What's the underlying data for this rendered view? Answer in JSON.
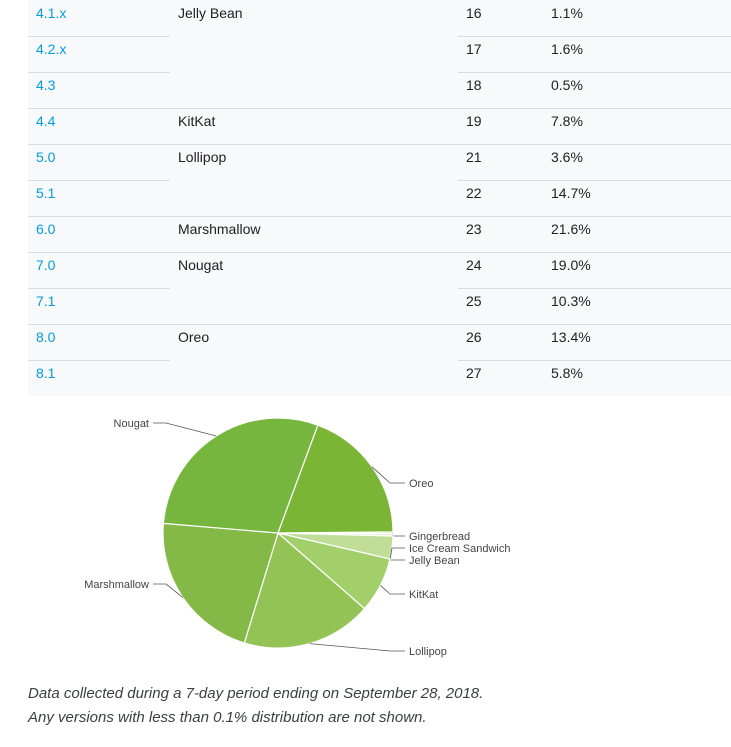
{
  "table": {
    "rows": [
      {
        "version": "4.1.x",
        "codename": "Jelly Bean",
        "api": "16",
        "distribution": "1.1%"
      },
      {
        "version": "4.2.x",
        "codename": "",
        "api": "17",
        "distribution": "1.6%"
      },
      {
        "version": "4.3",
        "codename": "",
        "api": "18",
        "distribution": "0.5%"
      },
      {
        "version": "4.4",
        "codename": "KitKat",
        "api": "19",
        "distribution": "7.8%"
      },
      {
        "version": "5.0",
        "codename": "Lollipop",
        "api": "21",
        "distribution": "3.6%"
      },
      {
        "version": "5.1",
        "codename": "",
        "api": "22",
        "distribution": "14.7%"
      },
      {
        "version": "6.0",
        "codename": "Marshmallow",
        "api": "23",
        "distribution": "21.6%"
      },
      {
        "version": "7.0",
        "codename": "Nougat",
        "api": "24",
        "distribution": "19.0%"
      },
      {
        "version": "7.1",
        "codename": "",
        "api": "25",
        "distribution": "10.3%"
      },
      {
        "version": "8.0",
        "codename": "Oreo",
        "api": "26",
        "distribution": "13.4%"
      },
      {
        "version": "8.1",
        "codename": "",
        "api": "27",
        "distribution": "5.8%"
      }
    ]
  },
  "chart_data": {
    "type": "pie",
    "slices": [
      {
        "label": "Gingerbread",
        "value": 0.3,
        "color": "#e6f0d2"
      },
      {
        "label": "Ice Cream Sandwich",
        "value": 0.3,
        "color": "#d9eabf"
      },
      {
        "label": "Jelly Bean",
        "value": 3.2,
        "color": "#c1de98"
      },
      {
        "label": "KitKat",
        "value": 7.8,
        "color": "#a3cf6b"
      },
      {
        "label": "Lollipop",
        "value": 18.3,
        "color": "#94c355"
      },
      {
        "label": "Marshmallow",
        "value": 21.6,
        "color": "#84b948"
      },
      {
        "label": "Nougat",
        "value": 29.3,
        "color": "#76b63e"
      },
      {
        "label": "Oreo",
        "value": 19.2,
        "color": "#7ab536"
      }
    ]
  },
  "notes": {
    "line1": "Data collected during a 7-day period ending on September 28, 2018.",
    "line2": "Any versions with less than 0.1% distribution are not shown."
  }
}
